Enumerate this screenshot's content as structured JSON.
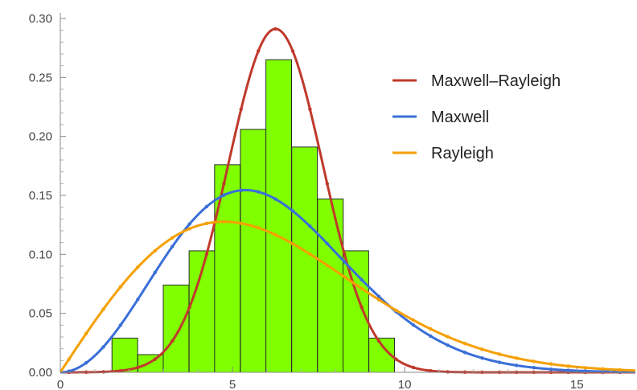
{
  "chart_data": {
    "type": "histogram",
    "title": "",
    "xlabel": "",
    "ylabel": "",
    "xlim": [
      0,
      16.7
    ],
    "ylim": [
      0,
      0.3
    ],
    "grid": false,
    "legend_position": "top-right",
    "x_ticks": [
      0,
      5,
      10,
      15
    ],
    "x_tick_labels": [
      "0",
      "5",
      "10",
      "15"
    ],
    "y_ticks": [
      0,
      0.05,
      0.1,
      0.15,
      0.2,
      0.25,
      0.3
    ],
    "y_tick_labels": [
      "0.00",
      "0.05",
      "0.10",
      "0.15",
      "0.20",
      "0.25",
      "0.30"
    ],
    "histogram": {
      "bin_width": 0.745,
      "bin_starts": [
        1.5,
        2.25,
        2.99,
        3.74,
        4.48,
        5.23,
        5.97,
        6.72,
        7.47,
        8.21,
        8.96
      ],
      "values": [
        0.029,
        0.015,
        0.074,
        0.103,
        0.176,
        0.206,
        0.265,
        0.191,
        0.147,
        0.103,
        0.029
      ],
      "color": "#7fff00"
    },
    "series": [
      {
        "name": "Maxwell–Rayleigh",
        "color": "#c0392b",
        "kind": "normal",
        "params": {
          "mean": 6.25,
          "sigma": 1.37
        }
      },
      {
        "name": "Maxwell",
        "color": "#3a6fd8",
        "kind": "maxwell",
        "params": {
          "a": 3.8
        }
      },
      {
        "name": "Rayleigh",
        "color": "#f5a000",
        "kind": "rayleigh",
        "params": {
          "sigma": 4.75
        }
      }
    ]
  }
}
